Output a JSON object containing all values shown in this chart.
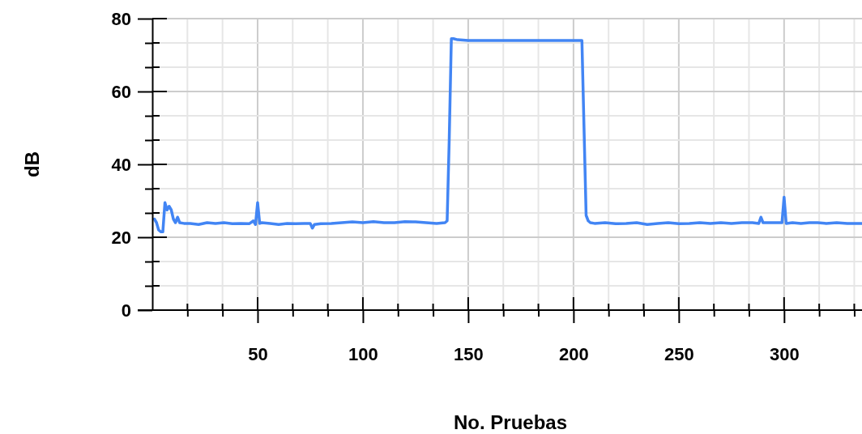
{
  "chart_data": {
    "type": "line",
    "xlabel": "No. Pruebas",
    "ylabel": "dB",
    "x": [
      1,
      2,
      3,
      4,
      5,
      6,
      7,
      8,
      9,
      10,
      11,
      12,
      13,
      15,
      18,
      22,
      26,
      30,
      34,
      38,
      42,
      46,
      48,
      49,
      50,
      51,
      52,
      56,
      60,
      64,
      68,
      72,
      75,
      76,
      77,
      80,
      85,
      90,
      95,
      100,
      105,
      110,
      115,
      120,
      125,
      130,
      135,
      139,
      140,
      141,
      142,
      143,
      145,
      150,
      160,
      170,
      180,
      190,
      200,
      204,
      205,
      206,
      207,
      208,
      210,
      215,
      220,
      225,
      230,
      235,
      240,
      245,
      250,
      255,
      260,
      265,
      270,
      275,
      280,
      285,
      288,
      289,
      290,
      293,
      296,
      299,
      300,
      301,
      304,
      308,
      312,
      316,
      320,
      325,
      330,
      337
    ],
    "series": [
      {
        "color": "#4285f4",
        "values": [
          25,
          24,
          22,
          21.5,
          21.5,
          29.5,
          27.5,
          28.5,
          27.5,
          25,
          24,
          25.5,
          24,
          23.8,
          23.8,
          23.5,
          24,
          23.8,
          24,
          23.7,
          23.8,
          23.7,
          24.5,
          23.5,
          29.5,
          23.8,
          24,
          23.8,
          23.5,
          23.8,
          23.7,
          23.8,
          23.8,
          22.5,
          23.5,
          23.7,
          23.8,
          24,
          24.2,
          24,
          24.3,
          24,
          24,
          24.3,
          24.2,
          24,
          23.8,
          24,
          24.5,
          47,
          74.5,
          74.5,
          74.2,
          74,
          74,
          74,
          74,
          74,
          74,
          74,
          50,
          26,
          24.5,
          24,
          23.8,
          24,
          23.7,
          23.8,
          24,
          23.5,
          23.8,
          24,
          23.7,
          23.8,
          24,
          23.8,
          24,
          23.8,
          24,
          24,
          23.8,
          25.5,
          24,
          24,
          24,
          24,
          31,
          23.8,
          24,
          23.8,
          24,
          24,
          23.8,
          24,
          23.8,
          23.8
        ]
      }
    ],
    "xlim": [
      0,
      337
    ],
    "xticks": [
      {
        "value": 16.67,
        "label": null
      },
      {
        "value": 33.33,
        "label": null
      },
      50,
      {
        "value": 66.67,
        "label": null
      },
      {
        "value": 83.33,
        "label": null
      },
      100,
      {
        "value": 116.67,
        "label": null
      },
      {
        "value": 133.33,
        "label": null
      },
      150,
      {
        "value": 166.67,
        "label": null
      },
      {
        "value": 183.33,
        "label": null
      },
      200,
      {
        "value": 216.67,
        "label": null
      },
      {
        "value": 233.33,
        "label": null
      },
      250,
      {
        "value": 266.67,
        "label": null
      },
      {
        "value": 283.33,
        "label": null
      },
      300,
      {
        "value": 316.67,
        "label": null
      },
      {
        "value": 333.33,
        "label": null
      }
    ],
    "ylim": [
      0,
      80
    ],
    "yticks": [
      0,
      {
        "value": 6.67,
        "label": null
      },
      {
        "value": 13.33,
        "label": null
      },
      20,
      {
        "value": 26.67,
        "label": null
      },
      {
        "value": 33.33,
        "label": null
      },
      40,
      {
        "value": 46.67,
        "label": null
      },
      {
        "value": 53.33,
        "label": null
      },
      60,
      {
        "value": 66.67,
        "label": null
      },
      {
        "value": 73.33,
        "label": null
      },
      80
    ],
    "grid": true,
    "marker": "none",
    "line_style": "solid"
  }
}
